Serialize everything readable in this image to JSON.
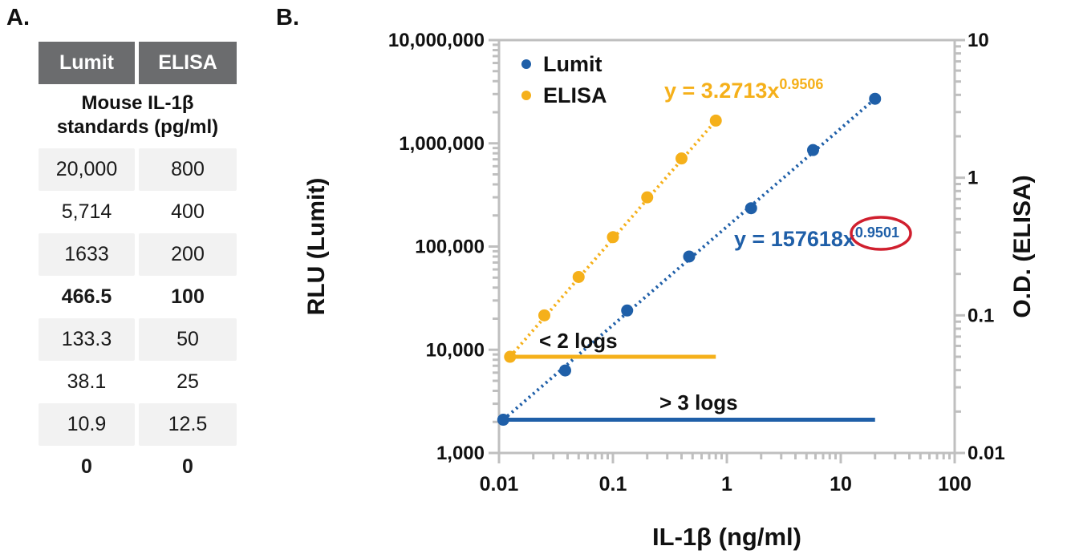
{
  "panel_a": {
    "label": "A.",
    "table": {
      "headers": [
        "Lumit",
        "ELISA"
      ],
      "subheader_lines": [
        "Mouse IL-1β",
        "standards (pg/ml)"
      ],
      "rows": [
        {
          "values": [
            "20,000",
            "800"
          ],
          "stripe": true,
          "bold": false
        },
        {
          "values": [
            "5,714",
            "400"
          ],
          "stripe": false,
          "bold": false
        },
        {
          "values": [
            "1633",
            "200"
          ],
          "stripe": true,
          "bold": false
        },
        {
          "values": [
            "466.5",
            "100"
          ],
          "stripe": false,
          "bold": true
        },
        {
          "values": [
            "133.3",
            "50"
          ],
          "stripe": true,
          "bold": false
        },
        {
          "values": [
            "38.1",
            "25"
          ],
          "stripe": false,
          "bold": false
        },
        {
          "values": [
            "10.9",
            "12.5"
          ],
          "stripe": true,
          "bold": false
        },
        {
          "values": [
            "0",
            "0"
          ],
          "stripe": false,
          "bold": true
        }
      ]
    }
  },
  "panel_b": {
    "label": "B."
  },
  "chart_data": {
    "type": "scatter",
    "x_scale": "log",
    "y_scale": "log",
    "xlabel": "IL-1β (ng/ml)",
    "ylabel_left": "RLU (Lumit)",
    "ylabel_right": "O.D. (ELISA)",
    "xlim": [
      0.01,
      100
    ],
    "ylim_left": [
      1000,
      10000000
    ],
    "ylim_right": [
      0.01,
      10
    ],
    "x_tick_labels": [
      "0.01",
      "0.1",
      "1",
      "10",
      "100"
    ],
    "x_tick_values": [
      0.01,
      0.1,
      1,
      10,
      100
    ],
    "y_tick_labels_left": [
      "10,000,000",
      "1,000,000",
      "100,000",
      "10,000",
      "1,000"
    ],
    "y_tick_values_left": [
      10000000,
      1000000,
      100000,
      10000,
      1000
    ],
    "y_tick_labels_right": [
      "10",
      "1",
      "0.1",
      "0.01"
    ],
    "y_tick_values_right": [
      10,
      1,
      0.1,
      0.01
    ],
    "grid": false,
    "legend_position": "top-left-inside",
    "axis_color": "#BFBFBF",
    "text_color": "#111111",
    "highlight_ellipse_color": "#D01F2E",
    "series": [
      {
        "name": "Lumit",
        "color": "#1F5FA8",
        "axis": "left",
        "x": [
          0.0109,
          0.0381,
          0.1333,
          0.4665,
          1.633,
          5.714,
          20
        ],
        "y": [
          2100,
          6300,
          24000,
          80000,
          235000,
          860000,
          2700000
        ],
        "trendline": {
          "style": "dotted",
          "equation_base": "y = 157618x",
          "equation_exponent": "0.9501",
          "exponent_highlight": "red-ellipse"
        },
        "range_line": {
          "y": 2100,
          "x_start": 0.0109,
          "x_end": 20,
          "label": "> 3 logs"
        }
      },
      {
        "name": "ELISA",
        "color": "#F5B01A",
        "axis": "right",
        "x": [
          0.0125,
          0.025,
          0.05,
          0.1,
          0.2,
          0.4,
          0.8
        ],
        "y": [
          0.05,
          0.1,
          0.19,
          0.37,
          0.72,
          1.38,
          2.6
        ],
        "trendline": {
          "style": "dotted",
          "equation_base": "y = 3.2713x",
          "equation_exponent": "0.9506",
          "exponent_highlight": "none"
        },
        "range_line": {
          "y": 0.05,
          "x_start": 0.0125,
          "x_end": 0.8,
          "label": "< 2 logs"
        }
      }
    ]
  }
}
